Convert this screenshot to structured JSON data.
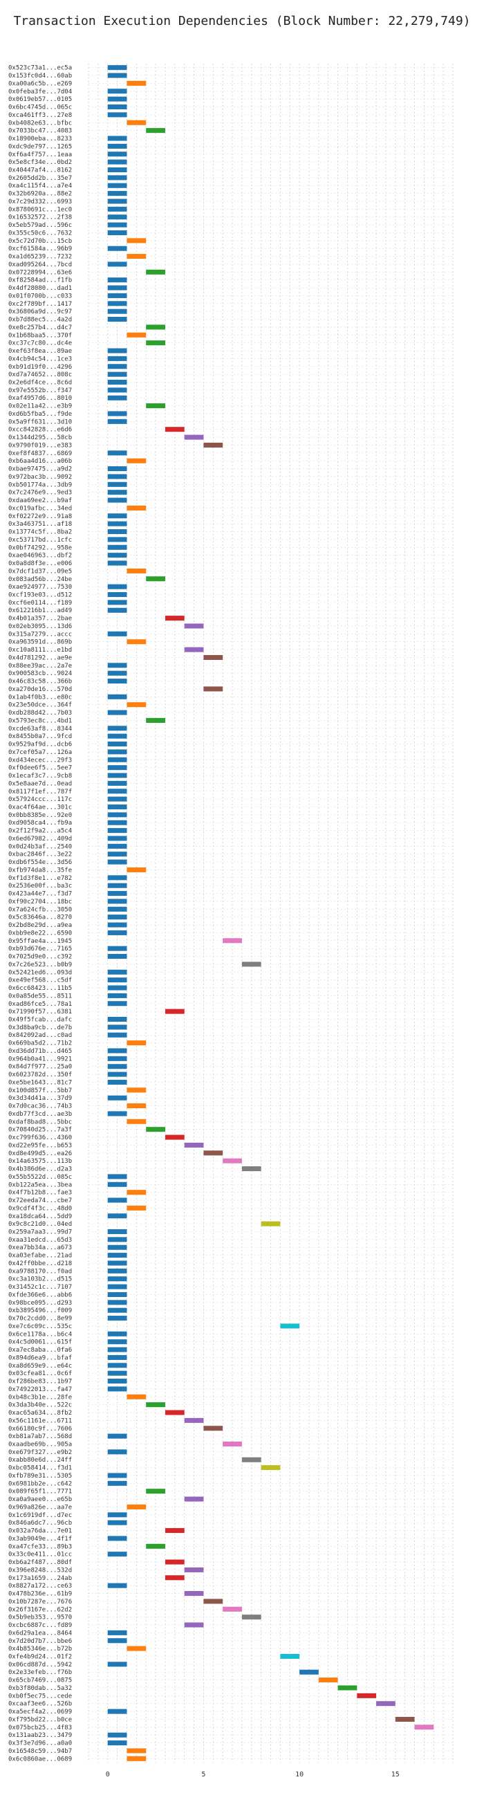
{
  "chart_data": {
    "type": "bar",
    "title": "Transaction Execution Dependencies (Block Number: 22,279,749)",
    "xlabel": "",
    "ylabel": "",
    "xlim": [
      -1,
      18
    ],
    "xticks": [
      "0",
      "5",
      "10",
      "15"
    ],
    "grid": true,
    "colors": [
      "#1f77b4",
      "#ff7f0e",
      "#2ca02c",
      "#d62728",
      "#9467bd",
      "#8c564b",
      "#e377c2",
      "#7f7f7f",
      "#bcbd22",
      "#17becf"
    ],
    "transactions": [
      {
        "label": "0x523c73a1...ec5a",
        "start": 0
      },
      {
        "label": "0x153fc0d4...60ab",
        "start": 0
      },
      {
        "label": "0xa00a6c5b...e269",
        "start": 1
      },
      {
        "label": "0x0febа3fe...7d04",
        "start": 0
      },
      {
        "label": "0x0619eb57...0105",
        "start": 0
      },
      {
        "label": "0x6bc4745d...065c",
        "start": 0
      },
      {
        "label": "0xca461ff3...27e8",
        "start": 0
      },
      {
        "label": "0xb4082e63...bfbc",
        "start": 1
      },
      {
        "label": "0x7033bc47...4083",
        "start": 2
      },
      {
        "label": "0x18900eba...8233",
        "start": 0
      },
      {
        "label": "0xdc9de797...1265",
        "start": 0
      },
      {
        "label": "0xf6a4f757...1eaa",
        "start": 0
      },
      {
        "label": "0x5e8cf34e...0bd2",
        "start": 0
      },
      {
        "label": "0x40447af4...8162",
        "start": 0
      },
      {
        "label": "0x2605dd2b...35e7",
        "start": 0
      },
      {
        "label": "0xa4c115f4...a7e4",
        "start": 0
      },
      {
        "label": "0x32b6920a...88e2",
        "start": 0
      },
      {
        "label": "0x7c29d332...6993",
        "start": 0
      },
      {
        "label": "0x8780691c...1ec0",
        "start": 0
      },
      {
        "label": "0x16532572...2f38",
        "start": 0
      },
      {
        "label": "0x5eb579ad...596c",
        "start": 0
      },
      {
        "label": "0x355c50c6...7632",
        "start": 0
      },
      {
        "label": "0x5c72d70b...15cb",
        "start": 1
      },
      {
        "label": "0xcf61584a...96b9",
        "start": 0
      },
      {
        "label": "0xa1d65239...7232",
        "start": 1
      },
      {
        "label": "0xad095264...7bcd",
        "start": 0
      },
      {
        "label": "0x07228994...63e6",
        "start": 2
      },
      {
        "label": "0xf82584ad...f1fb",
        "start": 0
      },
      {
        "label": "0x4df28080...dad1",
        "start": 0
      },
      {
        "label": "0x01f0700b...c033",
        "start": 0
      },
      {
        "label": "0xc2f789bf...1417",
        "start": 0
      },
      {
        "label": "0x36806a9d...9c97",
        "start": 0
      },
      {
        "label": "0xb7d88ec5...4a2d",
        "start": 0
      },
      {
        "label": "0xe8c257b4...d4c7",
        "start": 2
      },
      {
        "label": "0x1b68baa5...370f",
        "start": 1
      },
      {
        "label": "0xc37c7c80...dc4e",
        "start": 2
      },
      {
        "label": "0xef63f8ea...89ae",
        "start": 0
      },
      {
        "label": "0x4cb94c54...1ce3",
        "start": 0
      },
      {
        "label": "0xb91d19f0...4296",
        "start": 0
      },
      {
        "label": "0xd7a74652...808c",
        "start": 0
      },
      {
        "label": "0x2e6df4ce...8c6d",
        "start": 0
      },
      {
        "label": "0x97e5552b...f347",
        "start": 0
      },
      {
        "label": "0xaf4957d6...8010",
        "start": 0
      },
      {
        "label": "0x02e11a42...e3b9",
        "start": 2
      },
      {
        "label": "0xd6b5fba5...f9de",
        "start": 0
      },
      {
        "label": "0x5a9ff631...3d10",
        "start": 0
      },
      {
        "label": "0xcc842828...e6d6",
        "start": 3
      },
      {
        "label": "0x1344d295...58cb",
        "start": 4
      },
      {
        "label": "0x9790f019...e383",
        "start": 5
      },
      {
        "label": "0xef8f4837...6869",
        "start": 0
      },
      {
        "label": "0xb6aa4d16...a06b",
        "start": 1
      },
      {
        "label": "0xbae97475...a9d2",
        "start": 0
      },
      {
        "label": "0x972bac3b...9092",
        "start": 0
      },
      {
        "label": "0xb501774a...3db9",
        "start": 0
      },
      {
        "label": "0x7c2476e9...9ed3",
        "start": 0
      },
      {
        "label": "0xdaa69ee2...b9af",
        "start": 0
      },
      {
        "label": "0xc019afbc...34ed",
        "start": 1
      },
      {
        "label": "0xf02272e9...91a8",
        "start": 0
      },
      {
        "label": "0x3a463751...af18",
        "start": 0
      },
      {
        "label": "0x13774c5f...8ba2",
        "start": 0
      },
      {
        "label": "0xc53717bd...1cfc",
        "start": 0
      },
      {
        "label": "0x0bf74292...958e",
        "start": 0
      },
      {
        "label": "0xae046963...dbf2",
        "start": 0
      },
      {
        "label": "0x0a8d8f3e...e006",
        "start": 0
      },
      {
        "label": "0x7dcf1d37...09e5",
        "start": 1
      },
      {
        "label": "0x083ad56b...24be",
        "start": 2
      },
      {
        "label": "0xae924977...7530",
        "start": 0
      },
      {
        "label": "0xcf193e03...d512",
        "start": 0
      },
      {
        "label": "0xcf6e0114...f189",
        "start": 0
      },
      {
        "label": "0x612216b1...ad49",
        "start": 0
      },
      {
        "label": "0x4b01a357...2bae",
        "start": 3
      },
      {
        "label": "0x02eb3095...13d6",
        "start": 4
      },
      {
        "label": "0x315a7279...accc",
        "start": 0
      },
      {
        "label": "0xa963591d...869b",
        "start": 1
      },
      {
        "label": "0xc10a8111...e1bd",
        "start": 4
      },
      {
        "label": "0x4d781292...ae9e",
        "start": 5
      },
      {
        "label": "0x88ee39ac...2a7e",
        "start": 0
      },
      {
        "label": "0x900583cb...9024",
        "start": 0
      },
      {
        "label": "0x46c83c58...366b",
        "start": 0
      },
      {
        "label": "0xa270de16...570d",
        "start": 5
      },
      {
        "label": "0x1ab4f0b3...e80c",
        "start": 0
      },
      {
        "label": "0x23e50dce...364f",
        "start": 1
      },
      {
        "label": "0xdb288d42...7b03",
        "start": 0
      },
      {
        "label": "0x5793ec8c...4bd1",
        "start": 2
      },
      {
        "label": "0xcde63af8...8344",
        "start": 0
      },
      {
        "label": "0x8455b0a7...9fcd",
        "start": 0
      },
      {
        "label": "0x9529af9d...dcb6",
        "start": 0
      },
      {
        "label": "0x7cef05a7...126a",
        "start": 0
      },
      {
        "label": "0xd434ecec...29f3",
        "start": 0
      },
      {
        "label": "0xf0dee6f5...5ee7",
        "start": 0
      },
      {
        "label": "0x1ecaf3c7...9cb8",
        "start": 0
      },
      {
        "label": "0x5e8aae7d...0ead",
        "start": 0
      },
      {
        "label": "0x8117f1ef...787f",
        "start": 0
      },
      {
        "label": "0x57924ccc...117c",
        "start": 0
      },
      {
        "label": "0xac4f64ae...301c",
        "start": 0
      },
      {
        "label": "0x0bb8385e...92e0",
        "start": 0
      },
      {
        "label": "0xd9058ca4...fb9a",
        "start": 0
      },
      {
        "label": "0x2f12f9a2...a5c4",
        "start": 0
      },
      {
        "label": "0x6ed67982...409d",
        "start": 0
      },
      {
        "label": "0x0d24b3af...2540",
        "start": 0
      },
      {
        "label": "0xbac2846f...3e22",
        "start": 0
      },
      {
        "label": "0xdb6f554e...3d56",
        "start": 0
      },
      {
        "label": "0xfb974da8...35fe",
        "start": 1
      },
      {
        "label": "0xf1d3f8e1...e782",
        "start": 0
      },
      {
        "label": "0x2536e00f...ba3c",
        "start": 0
      },
      {
        "label": "0x423a44e7...f3d7",
        "start": 0
      },
      {
        "label": "0xf90c2704...18bc",
        "start": 0
      },
      {
        "label": "0x7a624cfb...3050",
        "start": 0
      },
      {
        "label": "0x5c83646a...8270",
        "start": 0
      },
      {
        "label": "0x2bd8e29d...a9ea",
        "start": 0
      },
      {
        "label": "0xbb9e8e22...6590",
        "start": 0
      },
      {
        "label": "0x95ffae4a...1945",
        "start": 6
      },
      {
        "label": "0xb93d676e...7165",
        "start": 0
      },
      {
        "label": "0x7025d9e0...c392",
        "start": 0
      },
      {
        "label": "0x7c26e523...b0b9",
        "start": 7
      },
      {
        "label": "0x52421ed6...093d",
        "start": 0
      },
      {
        "label": "0xe49ef568...c5df",
        "start": 0
      },
      {
        "label": "0x6cc68423...11b5",
        "start": 0
      },
      {
        "label": "0x0a85de55...8511",
        "start": 0
      },
      {
        "label": "0xad86fce5...78a1",
        "start": 0
      },
      {
        "label": "0x71990f57...6381",
        "start": 3
      },
      {
        "label": "0x49f5fcab...dafc",
        "start": 0
      },
      {
        "label": "0x3d8ba9cb...de7b",
        "start": 0
      },
      {
        "label": "0x842092ad...c0ad",
        "start": 0
      },
      {
        "label": "0x669ba5d2...71b2",
        "start": 1
      },
      {
        "label": "0xd36dd71b...d465",
        "start": 0
      },
      {
        "label": "0x964b0a41...9921",
        "start": 0
      },
      {
        "label": "0x84d7f977...25a0",
        "start": 0
      },
      {
        "label": "0x6023782d...350f",
        "start": 0
      },
      {
        "label": "0xe5be1643...81c7",
        "start": 0
      },
      {
        "label": "0x100d857f...5bb7",
        "start": 1
      },
      {
        "label": "0x3d34d41a...37d9",
        "start": 0
      },
      {
        "label": "0x7d0cac36...74b3",
        "start": 1
      },
      {
        "label": "0xdb77f3cd...ae3b",
        "start": 0
      },
      {
        "label": "0xdaf8bad8...5bbc",
        "start": 1
      },
      {
        "label": "0x70840d25...7a3f",
        "start": 2
      },
      {
        "label": "0xc799f636...4360",
        "start": 3
      },
      {
        "label": "0xd22e95fe...b653",
        "start": 4
      },
      {
        "label": "0xd8e499d5...ea26",
        "start": 5
      },
      {
        "label": "0x14a63575...113b",
        "start": 6
      },
      {
        "label": "0x4b386d6e...d2a3",
        "start": 7
      },
      {
        "label": "0x55b5522d...085c",
        "start": 0
      },
      {
        "label": "0xb122a5ea...3bea",
        "start": 0
      },
      {
        "label": "0x4f7b12b8...fae3",
        "start": 1
      },
      {
        "label": "0x72eeda74...cbe7",
        "start": 0
      },
      {
        "label": "0x9cdf4f3c...48d0",
        "start": 1
      },
      {
        "label": "0xa18dca64...5dd9",
        "start": 0
      },
      {
        "label": "0x9c8c21d0...04ed",
        "start": 8
      },
      {
        "label": "0x259a7aa3...99d7",
        "start": 0
      },
      {
        "label": "0xaa31edcd...65d3",
        "start": 0
      },
      {
        "label": "0xea7bb34a...a673",
        "start": 0
      },
      {
        "label": "0xa03efabe...21ad",
        "start": 0
      },
      {
        "label": "0x42ff0bbe...d218",
        "start": 0
      },
      {
        "label": "0xa9788170...f0ad",
        "start": 0
      },
      {
        "label": "0xc3a103b2...d515",
        "start": 0
      },
      {
        "label": "0x31452c1c...7107",
        "start": 0
      },
      {
        "label": "0xfde366e6...abb6",
        "start": 0
      },
      {
        "label": "0x98bce095...d293",
        "start": 0
      },
      {
        "label": "0xb3895496...f009",
        "start": 0
      },
      {
        "label": "0x70c2cdd0...8e99",
        "start": 0
      },
      {
        "label": "0xe7c6c09c...535c",
        "start": 9
      },
      {
        "label": "0x6ce1178a...b6c4",
        "start": 0
      },
      {
        "label": "0x4c5d0061...615f",
        "start": 0
      },
      {
        "label": "0xa7ec8aba...0fa6",
        "start": 0
      },
      {
        "label": "0x894d6ea9...bfaf",
        "start": 0
      },
      {
        "label": "0xa8d659e9...e64c",
        "start": 0
      },
      {
        "label": "0x03cfea81...0c6f",
        "start": 0
      },
      {
        "label": "0xf286be83...1b97",
        "start": 0
      },
      {
        "label": "0x74922013...fa47",
        "start": 0
      },
      {
        "label": "0xb48c3b1e...28fe",
        "start": 1
      },
      {
        "label": "0x3da3b40e...522c",
        "start": 2
      },
      {
        "label": "0xac65a634...8fb2",
        "start": 3
      },
      {
        "label": "0x56c1161e...6711",
        "start": 4
      },
      {
        "label": "0x66180c9f...7606",
        "start": 5
      },
      {
        "label": "0xb81a7ab7...568d",
        "start": 0
      },
      {
        "label": "0xaadbe69b...905a",
        "start": 6
      },
      {
        "label": "0xe679f327...e9b2",
        "start": 0
      },
      {
        "label": "0xabb80e6d...24ff",
        "start": 7
      },
      {
        "label": "0xbc058414...f3d1",
        "start": 8
      },
      {
        "label": "0xfb789e31...5305",
        "start": 0
      },
      {
        "label": "0x6981bb2e...c642",
        "start": 0
      },
      {
        "label": "0x089f65f1...7771",
        "start": 2
      },
      {
        "label": "0xa0a9aee0...e65b",
        "start": 4
      },
      {
        "label": "0x969a826e...aa7e",
        "start": 1
      },
      {
        "label": "0x1c6919df...d7ec",
        "start": 0
      },
      {
        "label": "0x846a6dc7...96cb",
        "start": 0
      },
      {
        "label": "0x032a76da...7e01",
        "start": 3
      },
      {
        "label": "0x3ab9049e...4f1f",
        "start": 0
      },
      {
        "label": "0xa47cfe33...89b3",
        "start": 2
      },
      {
        "label": "0x33c0e411...01cc",
        "start": 0
      },
      {
        "label": "0xb6a2f487...80df",
        "start": 3
      },
      {
        "label": "0x396e8248...532d",
        "start": 4
      },
      {
        "label": "0x173a1659...24ab",
        "start": 3
      },
      {
        "label": "0x8827a172...ce63",
        "start": 0
      },
      {
        "label": "0x478b236e...61b9",
        "start": 4
      },
      {
        "label": "0x10b7287e...7676",
        "start": 5
      },
      {
        "label": "0x26f3167e...62d2",
        "start": 6
      },
      {
        "label": "0x5b9eb353...9570",
        "start": 7
      },
      {
        "label": "0xcbc6887c...fd89",
        "start": 4
      },
      {
        "label": "0x6d29a1ea...8464",
        "start": 0
      },
      {
        "label": "0x7d20d7b7...bbe6",
        "start": 0
      },
      {
        "label": "0x4b85346e...b72b",
        "start": 1
      },
      {
        "label": "0xfe4b9d24...01f2",
        "start": 9
      },
      {
        "label": "0x06cd887d...5942",
        "start": 0
      },
      {
        "label": "0x2e33efeb...f76b",
        "start": 10
      },
      {
        "label": "0x65cb7469...0875",
        "start": 11
      },
      {
        "label": "0xb3f80dab...5a32",
        "start": 12
      },
      {
        "label": "0xb0f5ec75...cede",
        "start": 13
      },
      {
        "label": "0xcaaf3ee6...526b",
        "start": 14
      },
      {
        "label": "0xa5ecf4a2...0699",
        "start": 0
      },
      {
        "label": "0xf795bd22...b0ce",
        "start": 15
      },
      {
        "label": "0x075bcb25...4f83",
        "start": 16
      },
      {
        "label": "0x131aab23...3479",
        "start": 0
      },
      {
        "label": "0x3f3e7d96...a0a0",
        "start": 0
      },
      {
        "label": "0x16548c59...94b7",
        "start": 1
      },
      {
        "label": "0x6c0860ae...0689",
        "start": 1
      }
    ]
  }
}
